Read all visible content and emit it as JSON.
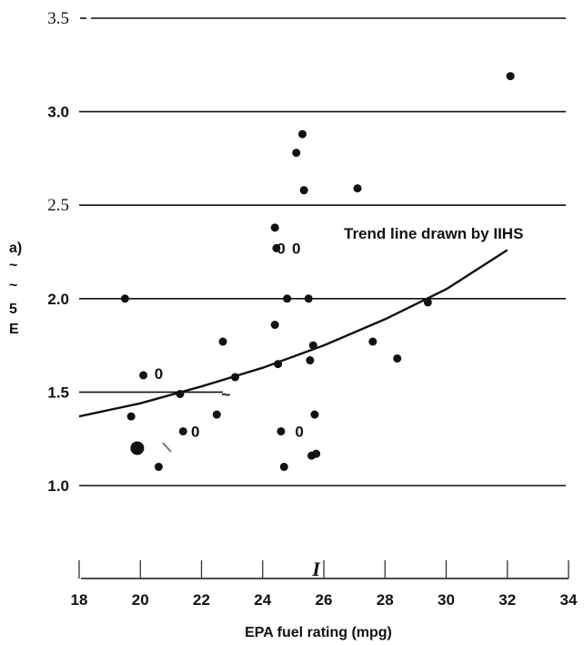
{
  "chart_data": {
    "type": "scatter",
    "xlabel": "EPA fuel rating (mpg)",
    "ylabel_fragments": [
      "a)",
      "~",
      "~",
      "5",
      "E"
    ],
    "xlim": [
      18,
      34
    ],
    "ylim": [
      1.0,
      3.5
    ],
    "x_ticks": [
      "18",
      "20",
      "22",
      "24",
      "26",
      "28",
      "30",
      "32",
      "34"
    ],
    "y_ticks": [
      "1.0",
      "1.5",
      "2.0",
      "2.5",
      "3.0",
      "3.5"
    ],
    "grid": "horizontal",
    "points": [
      {
        "x": 19.5,
        "y": 2.0
      },
      {
        "x": 19.7,
        "y": 1.37
      },
      {
        "x": 19.9,
        "y": 1.2
      },
      {
        "x": 20.1,
        "y": 1.59
      },
      {
        "x": 20.6,
        "y": 1.1
      },
      {
        "x": 21.3,
        "y": 1.49
      },
      {
        "x": 21.4,
        "y": 1.29
      },
      {
        "x": 22.5,
        "y": 1.38
      },
      {
        "x": 22.7,
        "y": 1.77
      },
      {
        "x": 23.1,
        "y": 1.58
      },
      {
        "x": 24.4,
        "y": 2.38
      },
      {
        "x": 24.4,
        "y": 1.86
      },
      {
        "x": 24.45,
        "y": 2.27
      },
      {
        "x": 24.5,
        "y": 1.65
      },
      {
        "x": 24.6,
        "y": 1.29
      },
      {
        "x": 24.7,
        "y": 1.1
      },
      {
        "x": 24.8,
        "y": 2.0
      },
      {
        "x": 25.1,
        "y": 2.78
      },
      {
        "x": 25.3,
        "y": 2.88
      },
      {
        "x": 25.35,
        "y": 2.58
      },
      {
        "x": 25.5,
        "y": 2.0
      },
      {
        "x": 25.55,
        "y": 1.67
      },
      {
        "x": 25.6,
        "y": 1.16
      },
      {
        "x": 25.65,
        "y": 1.75
      },
      {
        "x": 25.7,
        "y": 1.38
      },
      {
        "x": 25.75,
        "y": 1.17
      },
      {
        "x": 27.1,
        "y": 2.59
      },
      {
        "x": 27.6,
        "y": 1.77
      },
      {
        "x": 28.4,
        "y": 1.68
      },
      {
        "x": 29.4,
        "y": 1.98
      },
      {
        "x": 32.1,
        "y": 3.19
      }
    ],
    "open_markers": [
      {
        "x": 20.6,
        "y": 1.6,
        "text": "0"
      },
      {
        "x": 21.8,
        "y": 1.29,
        "text": "0"
      },
      {
        "x": 24.6,
        "y": 2.27,
        "text": "0"
      },
      {
        "x": 25.1,
        "y": 2.27,
        "text": "0"
      },
      {
        "x": 25.2,
        "y": 1.29,
        "text": "0"
      }
    ],
    "trend_line": {
      "label": "Trend line drawn by IIHS",
      "points": [
        [
          18,
          1.37
        ],
        [
          20,
          1.44
        ],
        [
          22,
          1.53
        ],
        [
          24,
          1.63
        ],
        [
          26,
          1.75
        ],
        [
          28,
          1.89
        ],
        [
          30,
          2.05
        ],
        [
          32,
          2.26
        ]
      ]
    },
    "stray_marks": [
      {
        "x": 22.8,
        "y": 1.49,
        "text": "~"
      },
      {
        "x": 25.75,
        "y": 0.72,
        "text": "I"
      }
    ]
  }
}
